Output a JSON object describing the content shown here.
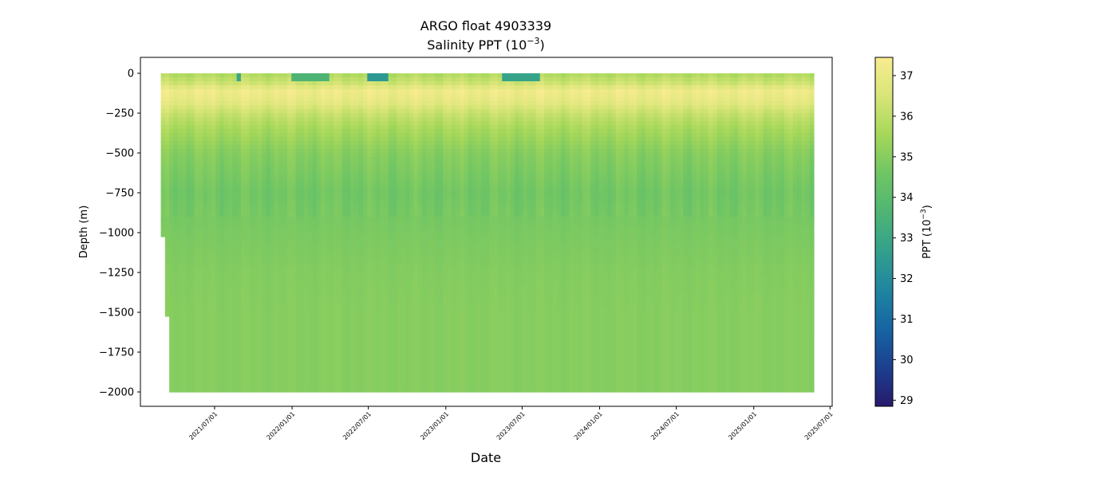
{
  "chart_data": {
    "type": "heatmap",
    "title": "ARGO float 4903339",
    "subtitle_prefix": "Salinity PPT (10",
    "subtitle_exp": "−3",
    "subtitle_suffix": ")",
    "xlabel": "Date",
    "ylabel": "Depth (m)",
    "x_ticks": [
      "2021/07/01",
      "2022/01/01",
      "2022/07/01",
      "2023/01/01",
      "2023/07/01",
      "2024/01/01",
      "2024/07/01",
      "2025/01/01",
      "2025/07/01"
    ],
    "y_ticks": [
      0,
      -250,
      -500,
      -750,
      -1000,
      -1250,
      -1500,
      -1750,
      -2000
    ],
    "y_tick_labels": [
      "0",
      "−250",
      "−500",
      "−750",
      "−1000",
      "−1250",
      "−1500",
      "−1750",
      "−2000"
    ],
    "ylim": [
      -2090,
      100
    ],
    "xlim": [
      "2021-01-06",
      "2025-07-06"
    ],
    "data_range": {
      "start": "2021-03-01",
      "end": "2025-05-25"
    },
    "profile_interval_days": 10,
    "colorbar": {
      "label_prefix": "PPT (10",
      "label_exp": "−3",
      "label_suffix": ")",
      "ticks": [
        29,
        30,
        31,
        32,
        33,
        34,
        35,
        36,
        37
      ],
      "range": [
        28.85,
        37.45
      ],
      "colormap": "summer_haline",
      "colors": [
        "#271a6c",
        "#1c3f8f",
        "#1665a3",
        "#1f85a0",
        "#32a08c",
        "#4fb574",
        "#6fc564",
        "#a5d75a",
        "#d8e577",
        "#f8ec91"
      ]
    },
    "salinity_profile": [
      {
        "depth": 0,
        "value": 35.7
      },
      {
        "depth": -60,
        "value": 36.3
      },
      {
        "depth": -110,
        "value": 37.2
      },
      {
        "depth": -180,
        "value": 36.9
      },
      {
        "depth": -250,
        "value": 36.2
      },
      {
        "depth": -350,
        "value": 35.6
      },
      {
        "depth": -500,
        "value": 35.0
      },
      {
        "depth": -750,
        "value": 34.6
      },
      {
        "depth": -1000,
        "value": 34.8
      },
      {
        "depth": -1250,
        "value": 34.95
      },
      {
        "depth": -1500,
        "value": 35.0
      },
      {
        "depth": -2000,
        "value": 35.0
      }
    ],
    "fresh_surface_periods": [
      {
        "start": "2022-07-01",
        "end": "2022-08-20",
        "value": 32.4
      },
      {
        "start": "2021-08-20",
        "end": "2021-09-05",
        "value": 33.0
      },
      {
        "start": "2022-01-01",
        "end": "2022-04-01",
        "value": 33.6
      },
      {
        "start": "2023-05-15",
        "end": "2023-08-15",
        "value": 32.8
      }
    ]
  }
}
